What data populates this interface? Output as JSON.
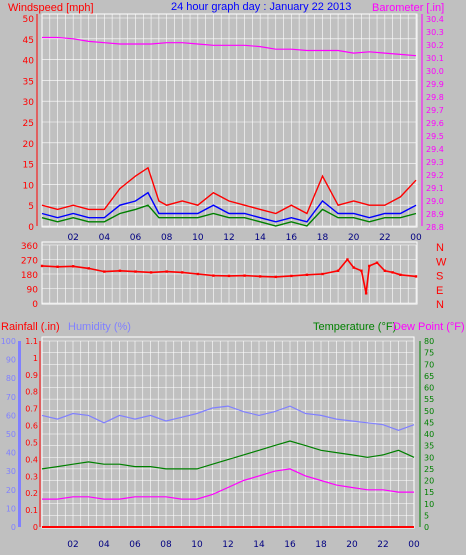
{
  "chart_data": [
    {
      "type": "line",
      "title": "24 hour graph day : January 22 2013",
      "left_label": "Windspeed [mph]",
      "right_label": "Barometer [.in]",
      "x_ticks": [
        "02",
        "04",
        "06",
        "08",
        "10",
        "12",
        "14",
        "16",
        "18",
        "20",
        "22",
        "00"
      ],
      "left_ticks": [
        "0",
        "5",
        "10",
        "15",
        "20",
        "25",
        "30",
        "35",
        "40",
        "45",
        "50"
      ],
      "ylim_left": [
        0,
        50
      ],
      "right_ticks": [
        "28.8",
        "28.9",
        "29.0",
        "29.1",
        "29.2",
        "29.3",
        "29.4",
        "29.5",
        "29.6",
        "29.7",
        "29.8",
        "29.9",
        "30.0",
        "30.1",
        "30.2",
        "30.3",
        "30.4"
      ],
      "ylim_right": [
        28.8,
        30.4
      ],
      "colors": {
        "gust": "#ff0000",
        "average": "#0000ff",
        "speed": "#008000",
        "barometer": "#ff00ff"
      },
      "series": {
        "barometer": [
          [
            0,
            30.25
          ],
          [
            1,
            30.25
          ],
          [
            2,
            30.24
          ],
          [
            3,
            30.22
          ],
          [
            4,
            30.21
          ],
          [
            5,
            30.2
          ],
          [
            6,
            30.2
          ],
          [
            7,
            30.2
          ],
          [
            8,
            30.21
          ],
          [
            9,
            30.21
          ],
          [
            10,
            30.2
          ],
          [
            11,
            30.19
          ],
          [
            12,
            30.19
          ],
          [
            13,
            30.19
          ],
          [
            14,
            30.18
          ],
          [
            15,
            30.16
          ],
          [
            16,
            30.16
          ],
          [
            17,
            30.15
          ],
          [
            18,
            30.15
          ],
          [
            19,
            30.15
          ],
          [
            20,
            30.13
          ],
          [
            21,
            30.14
          ],
          [
            22,
            30.13
          ],
          [
            23,
            30.12
          ],
          [
            24,
            30.11
          ]
        ],
        "gust": [
          [
            0,
            5
          ],
          [
            1,
            4
          ],
          [
            2,
            5
          ],
          [
            3,
            4
          ],
          [
            4,
            4
          ],
          [
            5,
            9
          ],
          [
            6,
            12
          ],
          [
            6.8,
            14
          ],
          [
            7.5,
            6
          ],
          [
            8,
            5
          ],
          [
            9,
            6
          ],
          [
            10,
            5
          ],
          [
            11,
            8
          ],
          [
            12,
            6
          ],
          [
            13,
            5
          ],
          [
            14,
            4
          ],
          [
            15,
            3
          ],
          [
            16,
            5
          ],
          [
            17,
            3
          ],
          [
            18,
            12
          ],
          [
            19,
            5
          ],
          [
            20,
            6
          ],
          [
            21,
            5
          ],
          [
            22,
            5
          ],
          [
            23,
            7
          ],
          [
            24,
            11
          ]
        ],
        "average": [
          [
            0,
            3
          ],
          [
            1,
            2
          ],
          [
            2,
            3
          ],
          [
            3,
            2
          ],
          [
            4,
            2
          ],
          [
            5,
            5
          ],
          [
            6,
            6
          ],
          [
            6.8,
            8
          ],
          [
            7.5,
            3
          ],
          [
            8,
            3
          ],
          [
            9,
            3
          ],
          [
            10,
            3
          ],
          [
            11,
            5
          ],
          [
            12,
            3
          ],
          [
            13,
            3
          ],
          [
            14,
            2
          ],
          [
            15,
            1
          ],
          [
            16,
            2
          ],
          [
            17,
            1
          ],
          [
            18,
            6
          ],
          [
            19,
            3
          ],
          [
            20,
            3
          ],
          [
            21,
            2
          ],
          [
            22,
            3
          ],
          [
            23,
            3
          ],
          [
            24,
            5
          ]
        ],
        "speed": [
          [
            0,
            2
          ],
          [
            1,
            1
          ],
          [
            2,
            2
          ],
          [
            3,
            1
          ],
          [
            4,
            1
          ],
          [
            5,
            3
          ],
          [
            6,
            4
          ],
          [
            6.8,
            5
          ],
          [
            7.5,
            2
          ],
          [
            8,
            2
          ],
          [
            9,
            2
          ],
          [
            10,
            2
          ],
          [
            11,
            3
          ],
          [
            12,
            2
          ],
          [
            13,
            2
          ],
          [
            14,
            1
          ],
          [
            15,
            0
          ],
          [
            16,
            1
          ],
          [
            17,
            0
          ],
          [
            18,
            4
          ],
          [
            19,
            2
          ],
          [
            20,
            2
          ],
          [
            21,
            1
          ],
          [
            22,
            2
          ],
          [
            23,
            2
          ],
          [
            24,
            3
          ]
        ]
      }
    },
    {
      "type": "scatter",
      "ylim": [
        0,
        360
      ],
      "left_ticks": [
        "0",
        "90",
        "180",
        "270",
        "360"
      ],
      "direction_labels": [
        "N",
        "W",
        "S",
        "E",
        "N"
      ],
      "color": "#ff0000",
      "points": [
        [
          0,
          230
        ],
        [
          1,
          225
        ],
        [
          2,
          228
        ],
        [
          3,
          215
        ],
        [
          4,
          195
        ],
        [
          5,
          200
        ],
        [
          6,
          195
        ],
        [
          7,
          190
        ],
        [
          8,
          195
        ],
        [
          9,
          190
        ],
        [
          10,
          180
        ],
        [
          11,
          170
        ],
        [
          12,
          168
        ],
        [
          13,
          170
        ],
        [
          14,
          165
        ],
        [
          15,
          162
        ],
        [
          16,
          168
        ],
        [
          17,
          175
        ],
        [
          18,
          180
        ],
        [
          19,
          200
        ],
        [
          19.6,
          270
        ],
        [
          20,
          220
        ],
        [
          20.5,
          200
        ],
        [
          20.8,
          60
        ],
        [
          21,
          230
        ],
        [
          21.5,
          250
        ],
        [
          22,
          200
        ],
        [
          22.5,
          190
        ],
        [
          23,
          175
        ],
        [
          24,
          165
        ]
      ]
    },
    {
      "type": "line",
      "labels": {
        "rainfall": "Rainfall (.in)",
        "humidity": "Humidity (%)",
        "temperature": "Temperature (°F)",
        "dewpoint": "Dew Point (°F)"
      },
      "x_ticks": [
        "02",
        "04",
        "06",
        "08",
        "10",
        "12",
        "14",
        "16",
        "18",
        "20",
        "22",
        "00"
      ],
      "humidity_ticks": [
        "0",
        "10",
        "20",
        "30",
        "40",
        "50",
        "60",
        "70",
        "80",
        "90",
        "100"
      ],
      "ylim_humidity": [
        0,
        100
      ],
      "rain_ticks": [
        "0",
        "0.1",
        "0.2",
        "0.3",
        "0.4",
        "0.5",
        "0.6",
        "0.7",
        "0.8",
        "0.9",
        "1",
        "1.1"
      ],
      "ylim_rain": [
        0,
        1.1
      ],
      "temp_ticks": [
        "0",
        "5",
        "10",
        "15",
        "20",
        "25",
        "30",
        "35",
        "40",
        "45",
        "50",
        "55",
        "60",
        "65",
        "70",
        "75",
        "80"
      ],
      "ylim_temp": [
        0,
        80
      ],
      "colors": {
        "humidity": "#8080ff",
        "temperature": "#008000",
        "dewpoint": "#ff00ff",
        "rainfall": "#ff0000"
      },
      "series": {
        "humidity": [
          [
            0,
            60
          ],
          [
            1,
            58
          ],
          [
            2,
            61
          ],
          [
            3,
            60
          ],
          [
            4,
            56
          ],
          [
            5,
            60
          ],
          [
            6,
            58
          ],
          [
            7,
            60
          ],
          [
            8,
            57
          ],
          [
            9,
            59
          ],
          [
            10,
            61
          ],
          [
            11,
            64
          ],
          [
            12,
            65
          ],
          [
            13,
            62
          ],
          [
            14,
            60
          ],
          [
            15,
            62
          ],
          [
            16,
            65
          ],
          [
            17,
            61
          ],
          [
            18,
            60
          ],
          [
            19,
            58
          ],
          [
            20,
            57
          ],
          [
            21,
            56
          ],
          [
            22,
            55
          ],
          [
            23,
            52
          ],
          [
            24,
            55
          ]
        ],
        "temperature": [
          [
            0,
            25
          ],
          [
            1,
            26
          ],
          [
            2,
            27
          ],
          [
            3,
            28
          ],
          [
            4,
            27
          ],
          [
            5,
            27
          ],
          [
            6,
            26
          ],
          [
            7,
            26
          ],
          [
            8,
            25
          ],
          [
            9,
            25
          ],
          [
            10,
            25
          ],
          [
            11,
            27
          ],
          [
            12,
            29
          ],
          [
            13,
            31
          ],
          [
            14,
            33
          ],
          [
            15,
            35
          ],
          [
            16,
            37
          ],
          [
            17,
            35
          ],
          [
            18,
            33
          ],
          [
            19,
            32
          ],
          [
            20,
            31
          ],
          [
            21,
            30
          ],
          [
            22,
            31
          ],
          [
            23,
            33
          ],
          [
            24,
            30
          ]
        ],
        "dewpoint": [
          [
            0,
            12
          ],
          [
            1,
            12
          ],
          [
            2,
            13
          ],
          [
            3,
            13
          ],
          [
            4,
            12
          ],
          [
            5,
            12
          ],
          [
            6,
            13
          ],
          [
            7,
            13
          ],
          [
            8,
            13
          ],
          [
            9,
            12
          ],
          [
            10,
            12
          ],
          [
            11,
            14
          ],
          [
            12,
            17
          ],
          [
            13,
            20
          ],
          [
            14,
            22
          ],
          [
            15,
            24
          ],
          [
            16,
            25
          ],
          [
            17,
            22
          ],
          [
            18,
            20
          ],
          [
            19,
            18
          ],
          [
            20,
            17
          ],
          [
            21,
            16
          ],
          [
            22,
            16
          ],
          [
            23,
            15
          ],
          [
            24,
            15
          ]
        ],
        "rainfall": [
          [
            0,
            0
          ],
          [
            24,
            0
          ]
        ]
      }
    }
  ]
}
